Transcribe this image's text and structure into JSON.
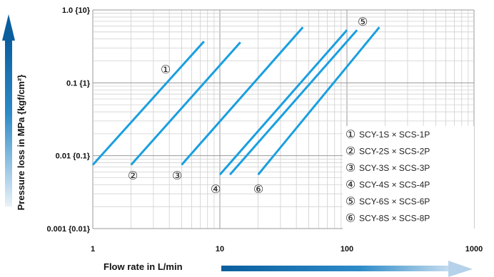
{
  "chart_data": {
    "type": "line",
    "xlabel": "Flow rate in L/min",
    "ylabel": "Pressure loss in MPa {kgf/cm²}",
    "xscale": "log",
    "yscale": "log",
    "xlim": [
      1,
      1000
    ],
    "ylim": [
      0.001,
      1.0
    ],
    "grid": true,
    "x_ticks": [
      {
        "value": 1,
        "label": "1"
      },
      {
        "value": 10,
        "label": "10"
      },
      {
        "value": 100,
        "label": "100"
      },
      {
        "value": 1000,
        "label": "1000"
      }
    ],
    "y_ticks": [
      {
        "value": 0.001,
        "label": "0.001 {0.01}"
      },
      {
        "value": 0.01,
        "label": "0.01 {0.1}"
      },
      {
        "value": 0.1,
        "label": "0.1 {1}"
      },
      {
        "value": 1.0,
        "label": "1.0 {10}"
      }
    ],
    "series_color": "#1a9fe0",
    "series": [
      {
        "name": "SCY-1S × SCS-1P",
        "marker": "①",
        "x": [
          1.0,
          7.5
        ],
        "y": [
          0.0075,
          0.37
        ]
      },
      {
        "name": "SCY-2S × SCS-2P",
        "marker": "②",
        "x": [
          2.0,
          14.5
        ],
        "y": [
          0.0075,
          0.36
        ]
      },
      {
        "name": "SCY-3S × SCS-3P",
        "marker": "③",
        "x": [
          5.0,
          45.0
        ],
        "y": [
          0.0075,
          0.58
        ]
      },
      {
        "name": "SCY-4S × SCS-4P",
        "marker": "④",
        "x": [
          10.0,
          100.0
        ],
        "y": [
          0.0055,
          0.53
        ]
      },
      {
        "name": "SCY-6S × SCS-6P",
        "marker": "⑤",
        "x": [
          12.0,
          120.0
        ],
        "y": [
          0.0055,
          0.53
        ]
      },
      {
        "name": "SCY-8S × SCS-8P",
        "marker": "⑥",
        "x": [
          20.0,
          180.0
        ],
        "y": [
          0.0055,
          0.58
        ]
      }
    ],
    "legend_position": "bottom-right"
  }
}
